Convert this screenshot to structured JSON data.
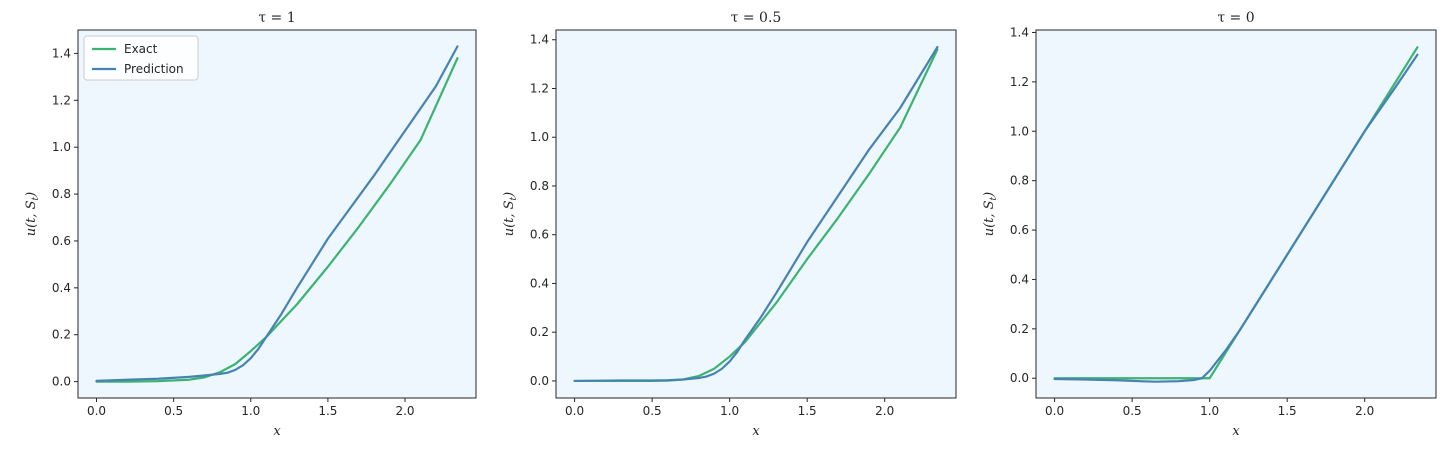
{
  "colors": {
    "exact": "#3cb371",
    "prediction": "#4682b4",
    "plot_bg": "#eef7fd",
    "axes": "#262626"
  },
  "legend": {
    "placement": "upper-left",
    "panel": 0,
    "entries": [
      "Exact",
      "Prediction"
    ]
  },
  "chart_data": [
    {
      "type": "line",
      "title": "τ = 1",
      "xlabel": "x",
      "ylabel": "u(t, S_t)",
      "xlim": [
        -0.12,
        2.46
      ],
      "ylim": [
        -0.07,
        1.5
      ],
      "xticks": [
        0.0,
        0.5,
        1.0,
        1.5,
        2.0
      ],
      "xtick_labels": [
        "0.0",
        "0.5",
        "1.0",
        "1.5",
        "2.0"
      ],
      "yticks": [
        0.0,
        0.2,
        0.4,
        0.6,
        0.8,
        1.0,
        1.2,
        1.4
      ],
      "ytick_labels": [
        "0.0",
        "0.2",
        "0.4",
        "0.6",
        "0.8",
        "1.0",
        "1.2",
        "1.4"
      ],
      "series": [
        {
          "name": "Exact",
          "x": [
            0.0,
            0.2,
            0.4,
            0.6,
            0.7,
            0.8,
            0.9,
            1.0,
            1.1,
            1.2,
            1.3,
            1.5,
            1.7,
            1.9,
            2.1,
            2.34
          ],
          "y": [
            0.0,
            0.0,
            0.002,
            0.008,
            0.018,
            0.04,
            0.075,
            0.13,
            0.19,
            0.26,
            0.33,
            0.49,
            0.66,
            0.84,
            1.03,
            1.38
          ]
        },
        {
          "name": "Prediction",
          "x": [
            0.0,
            0.2,
            0.4,
            0.6,
            0.7,
            0.8,
            0.85,
            0.9,
            0.95,
            1.0,
            1.05,
            1.1,
            1.2,
            1.3,
            1.5,
            1.6,
            1.8,
            2.0,
            2.2,
            2.34
          ],
          "y": [
            0.003,
            0.008,
            0.012,
            0.02,
            0.026,
            0.033,
            0.038,
            0.05,
            0.07,
            0.1,
            0.14,
            0.19,
            0.29,
            0.4,
            0.61,
            0.7,
            0.88,
            1.07,
            1.26,
            1.43
          ]
        }
      ]
    },
    {
      "type": "line",
      "title": "τ = 0.5",
      "xlabel": "x",
      "ylabel": "u(t, S_t)",
      "xlim": [
        -0.12,
        2.46
      ],
      "ylim": [
        -0.07,
        1.44
      ],
      "xticks": [
        0.0,
        0.5,
        1.0,
        1.5,
        2.0
      ],
      "xtick_labels": [
        "0.0",
        "0.5",
        "1.0",
        "1.5",
        "2.0"
      ],
      "yticks": [
        0.0,
        0.2,
        0.4,
        0.6,
        0.8,
        1.0,
        1.2,
        1.4
      ],
      "ytick_labels": [
        "0.0",
        "0.2",
        "0.4",
        "0.6",
        "0.8",
        "1.0",
        "1.2",
        "1.4"
      ],
      "series": [
        {
          "name": "Exact",
          "x": [
            0.0,
            0.3,
            0.5,
            0.6,
            0.7,
            0.8,
            0.9,
            1.0,
            1.1,
            1.2,
            1.3,
            1.5,
            1.7,
            1.9,
            2.1,
            2.34
          ],
          "y": [
            0.0,
            0.0,
            0.0,
            0.001,
            0.006,
            0.02,
            0.05,
            0.1,
            0.16,
            0.24,
            0.32,
            0.5,
            0.67,
            0.85,
            1.04,
            1.36
          ]
        },
        {
          "name": "Prediction",
          "x": [
            0.0,
            0.3,
            0.5,
            0.6,
            0.7,
            0.8,
            0.85,
            0.9,
            0.95,
            1.0,
            1.05,
            1.1,
            1.2,
            1.3,
            1.5,
            1.7,
            1.9,
            2.1,
            2.34
          ],
          "y": [
            0.0,
            0.002,
            0.002,
            0.003,
            0.006,
            0.012,
            0.018,
            0.03,
            0.05,
            0.08,
            0.12,
            0.17,
            0.26,
            0.36,
            0.57,
            0.76,
            0.95,
            1.12,
            1.37
          ]
        }
      ]
    },
    {
      "type": "line",
      "title": "τ = 0",
      "xlabel": "x",
      "ylabel": "u(t, S_t)",
      "xlim": [
        -0.12,
        2.46
      ],
      "ylim": [
        -0.08,
        1.41
      ],
      "xticks": [
        0.0,
        0.5,
        1.0,
        1.5,
        2.0
      ],
      "xtick_labels": [
        "0.0",
        "0.5",
        "1.0",
        "1.5",
        "2.0"
      ],
      "yticks": [
        0.0,
        0.2,
        0.4,
        0.6,
        0.8,
        1.0,
        1.2,
        1.4
      ],
      "ytick_labels": [
        "0.0",
        "0.2",
        "0.4",
        "0.6",
        "0.8",
        "1.0",
        "1.2",
        "1.4"
      ],
      "series": [
        {
          "name": "Exact",
          "x": [
            0.0,
            0.5,
            1.0,
            1.2,
            1.4,
            1.6,
            1.8,
            2.0,
            2.2,
            2.34
          ],
          "y": [
            0.0,
            0.0,
            0.0,
            0.2,
            0.4,
            0.6,
            0.8,
            1.0,
            1.2,
            1.34
          ]
        },
        {
          "name": "Prediction",
          "x": [
            0.0,
            0.2,
            0.4,
            0.55,
            0.65,
            0.8,
            0.9,
            0.95,
            1.0,
            1.05,
            1.1,
            1.2,
            1.4,
            1.6,
            1.8,
            2.0,
            2.2,
            2.34
          ],
          "y": [
            -0.003,
            -0.005,
            -0.008,
            -0.012,
            -0.014,
            -0.012,
            -0.007,
            0.0,
            0.03,
            0.07,
            0.11,
            0.2,
            0.4,
            0.6,
            0.8,
            1.0,
            1.18,
            1.31
          ]
        }
      ]
    }
  ]
}
